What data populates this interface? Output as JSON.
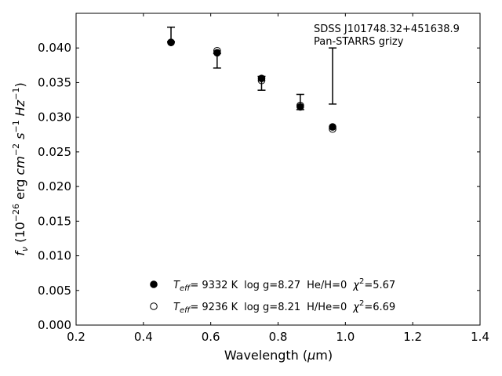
{
  "chart_data": {
    "type": "scatter",
    "title": "",
    "xlabel": "Wavelength (μm)",
    "ylabel": "f_ν (10^-26 erg cm^-2 s^-1 Hz^-1)",
    "xlim": [
      0.2,
      1.4
    ],
    "ylim": [
      0.0,
      0.045
    ],
    "xticks": [
      0.2,
      0.4,
      0.6,
      0.8,
      1.0,
      1.2,
      1.4
    ],
    "xtick_labels": [
      "0.2",
      "0.4",
      "0.6",
      "0.8",
      "1.0",
      "1.2",
      "1.4"
    ],
    "yticks": [
      0.0,
      0.005,
      0.01,
      0.015,
      0.02,
      0.025,
      0.03,
      0.035,
      0.04
    ],
    "ytick_labels": [
      "0.000",
      "0.005",
      "0.010",
      "0.015",
      "0.020",
      "0.025",
      "0.030",
      "0.035",
      "0.040"
    ],
    "grid": false,
    "annotations": [
      "SDSS J101748.32+451638.9",
      "Pan-STARRS grizy"
    ],
    "observed": {
      "x": [
        0.482,
        0.619,
        0.751,
        0.866,
        0.962
      ],
      "y": [
        0.0419,
        0.038,
        0.0349,
        0.0322,
        0.0359
      ],
      "yerr_low": [
        0.001,
        0.0009,
        0.001,
        0.0011,
        0.004
      ],
      "yerr_high": [
        0.0011,
        0.0012,
        0.001,
        0.0011,
        0.0041
      ]
    },
    "series": [
      {
        "name": "Teff=9332 K log g=8.27 He/H=0 χ2=5.67",
        "marker": "filled-circle",
        "x": [
          0.482,
          0.619,
          0.751,
          0.866,
          0.962
        ],
        "y": [
          0.0408,
          0.0393,
          0.0356,
          0.0315,
          0.0286
        ]
      },
      {
        "name": "Teff=9236 K log g=8.21 H/He=0 χ2=6.69",
        "marker": "open-circle",
        "x": [
          0.482,
          0.619,
          0.751,
          0.866,
          0.962
        ],
        "y": [
          0.0408,
          0.0396,
          0.0353,
          0.0317,
          0.0283
        ]
      }
    ],
    "legend": {
      "placement": "lower-center",
      "entries": [
        {
          "teff_label": "T",
          "teff_sub": "eff",
          "teff_value": "=  9332 K",
          "logg": "log g=8.27",
          "comp": "He/H=0",
          "chi_label": "χ",
          "chi_sup": "2",
          "chi_value": "=5.67"
        },
        {
          "teff_label": "T",
          "teff_sub": "eff",
          "teff_value": "=  9236 K",
          "logg": "log g=8.21",
          "comp": "H/He=0",
          "chi_label": "χ",
          "chi_sup": "2",
          "chi_value": "=6.69"
        }
      ]
    }
  }
}
